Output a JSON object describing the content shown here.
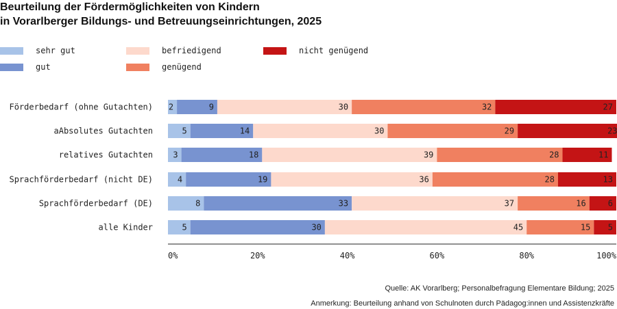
{
  "title_line1": "Beurteilung der Fördermöglichkeiten von Kindern",
  "title_line2": "in Vorarlberger Bildungs- und Betreuungseinrichtungen, 2025",
  "source": "Quelle: AK Vorarlberg; Personalbefragung Elementare Bildung; 2025",
  "note": "Anmerkung: Beurteilung anhand von Schulnoten durch Pädagog:innen und Assistenzkräfte",
  "chart_data": {
    "type": "bar",
    "orientation": "horizontal",
    "stacked": true,
    "title": "Beurteilung der Fördermöglichkeiten von Kindern in Vorarlberger Bildungs- und Betreuungseinrichtungen, 2025",
    "categories": [
      "Förderbedarf (ohne Gutachten)",
      "aAbsolutes Gutachten",
      "relatives Gutachten",
      "Sprachförderbedarf (nicht DE)",
      "Sprachförderbedarf (DE)",
      "alle Kinder"
    ],
    "series": [
      {
        "name": "sehr gut",
        "color": "#a8c3e8",
        "values": [
          2,
          5,
          3,
          4,
          8,
          5
        ]
      },
      {
        "name": "gut",
        "color": "#7893d0",
        "values": [
          9,
          14,
          18,
          19,
          33,
          30
        ]
      },
      {
        "name": "befriedigend",
        "color": "#fdd9cc",
        "values": [
          30,
          30,
          39,
          36,
          37,
          45
        ]
      },
      {
        "name": "genügend",
        "color": "#f08060",
        "values": [
          32,
          29,
          28,
          28,
          16,
          15
        ]
      },
      {
        "name": "nicht genügend",
        "color": "#c41415",
        "values": [
          27,
          23,
          11,
          13,
          6,
          5
        ]
      }
    ],
    "xlim": [
      0,
      100
    ],
    "x_ticks": [
      "0%",
      "20%",
      "40%",
      "60%",
      "80%",
      "100%"
    ],
    "grid": false,
    "legend_position": "top-left"
  }
}
